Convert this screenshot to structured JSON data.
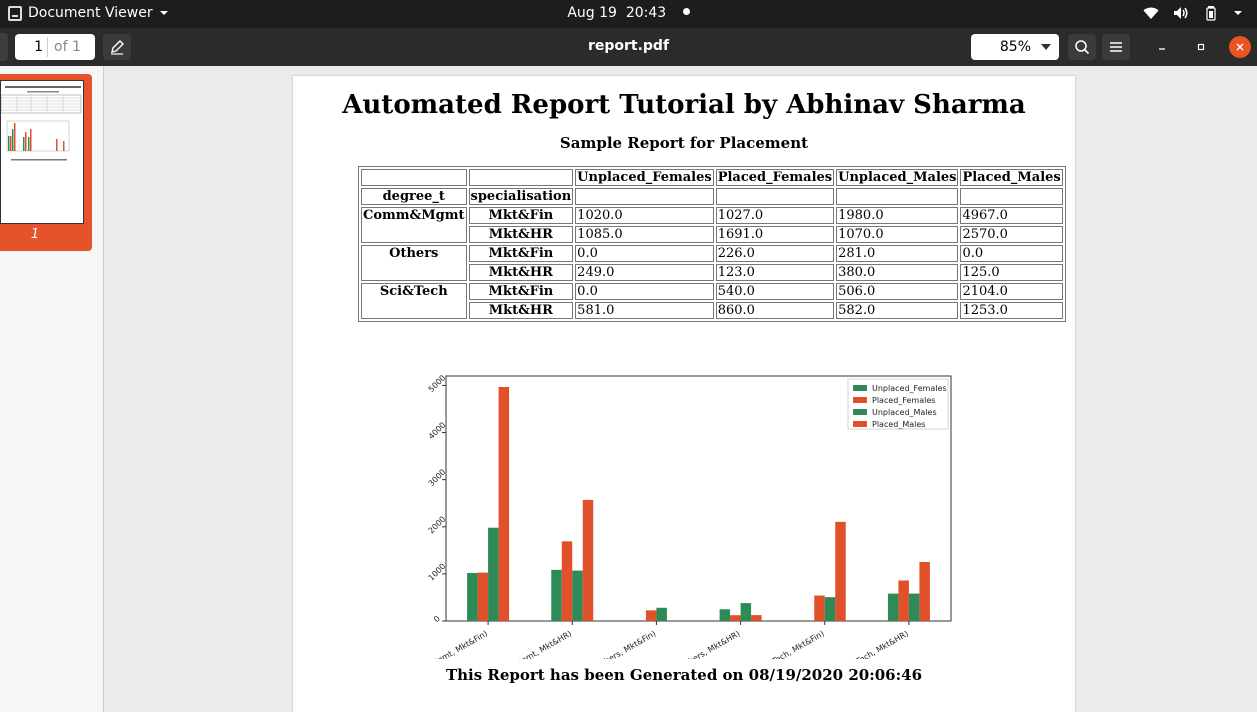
{
  "system_bar": {
    "app_name": "Document Viewer",
    "date": "Aug 19",
    "time": "20:43",
    "tray_icons": [
      "wifi-icon",
      "volume-icon",
      "battery-icon"
    ]
  },
  "toolbar": {
    "page_current": "1",
    "page_total": "of 1",
    "title": "report.pdf",
    "zoom": "85%"
  },
  "sidebar": {
    "thumbnail_label": "1"
  },
  "report": {
    "title": "Automated Report Tutorial by Abhinav Sharma",
    "subtitle": "Sample Report for Placement",
    "table": {
      "columns": [
        "Unplaced_Females",
        "Placed_Females",
        "Unplaced_Males",
        "Placed_Males"
      ],
      "index_names": [
        "degree_t",
        "specialisation"
      ],
      "groups": [
        {
          "degree": "Comm&Mgmt",
          "rows": [
            {
              "spec": "Mkt&Fin",
              "values": [
                "1020.0",
                "1027.0",
                "1980.0",
                "4967.0"
              ]
            },
            {
              "spec": "Mkt&HR",
              "values": [
                "1085.0",
                "1691.0",
                "1070.0",
                "2570.0"
              ]
            }
          ]
        },
        {
          "degree": "Others",
          "rows": [
            {
              "spec": "Mkt&Fin",
              "values": [
                "0.0",
                "226.0",
                "281.0",
                "0.0"
              ]
            },
            {
              "spec": "Mkt&HR",
              "values": [
                "249.0",
                "123.0",
                "380.0",
                "125.0"
              ]
            }
          ]
        },
        {
          "degree": "Sci&Tech",
          "rows": [
            {
              "spec": "Mkt&Fin",
              "values": [
                "0.0",
                "540.0",
                "506.0",
                "2104.0"
              ]
            },
            {
              "spec": "Mkt&HR",
              "values": [
                "581.0",
                "860.0",
                "582.0",
                "1253.0"
              ]
            }
          ]
        }
      ]
    },
    "footer": "This Report has been Generated on 08/19/2020 20:06:46"
  },
  "chart_data": {
    "type": "bar",
    "categories": [
      "(Comm&Mgmt, Mkt&Fin)",
      "(Comm&Mgmt, Mkt&HR)",
      "(Others, Mkt&Fin)",
      "(Others, Mkt&HR)",
      "(Sci&Tech, Mkt&Fin)",
      "(Sci&Tech, Mkt&HR)"
    ],
    "series": [
      {
        "name": "Unplaced_Females",
        "values": [
          1020,
          1085,
          0,
          249,
          0,
          581
        ]
      },
      {
        "name": "Placed_Females",
        "values": [
          1027,
          1691,
          226,
          123,
          540,
          860
        ]
      },
      {
        "name": "Unplaced_Males",
        "values": [
          1980,
          1070,
          281,
          380,
          506,
          582
        ]
      },
      {
        "name": "Placed_Males",
        "values": [
          4967,
          2570,
          0,
          125,
          2104,
          1253
        ]
      }
    ],
    "colors": [
      "#2e8b57",
      "#e0502a",
      "#2e8b57",
      "#e0502a"
    ],
    "ylim": [
      0,
      5200
    ],
    "yticks": [
      0,
      1000,
      2000,
      3000,
      4000,
      5000
    ],
    "legend": "top-right",
    "grid": false
  }
}
